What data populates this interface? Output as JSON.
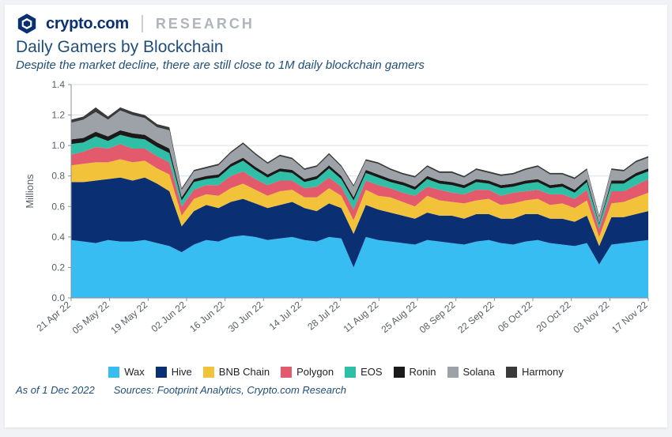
{
  "brand": {
    "name": "crypto.com",
    "research": "RESEARCH",
    "logo_primary": "#0a2f73",
    "logo_accent": "#ffffff",
    "research_color": "#b0b5bd"
  },
  "chart": {
    "type": "stacked-area",
    "title": "Daily Gamers by Blockchain",
    "subtitle": "Despite the market decline, there are still close to 1M daily blockchain gamers",
    "title_color": "#1f4e79",
    "title_fontsize": 21,
    "subtitle_fontsize": 15,
    "ylabel": "Millions",
    "ylabel_fontsize": 13,
    "ylim": [
      0.0,
      1.4
    ],
    "ytick_step": 0.2,
    "yticks": [
      "0.0",
      "0.2",
      "0.4",
      "0.6",
      "0.8",
      "1.0",
      "1.2",
      "1.4"
    ],
    "xticks": [
      "21 Apr 22",
      "05 May 22",
      "19 May 22",
      "02 Jun 22",
      "16 Jun 22",
      "30 Jun 22",
      "14 Jul 22",
      "28 Jul 22",
      "11 Aug 22",
      "25 Aug 22",
      "08 Sep 22",
      "22 Sep 22",
      "06 Oct 22",
      "20 Oct 22",
      "03 Nov 22",
      "17 Nov 22"
    ],
    "xtick_rotate_deg": -40,
    "grid_color": "#dcdfe4",
    "axis_color": "#8a8f98",
    "tick_font_color": "#5a5f66",
    "tick_fontsize": 12,
    "background_color": "#ffffff",
    "series": [
      {
        "name": "Wax",
        "color": "#37bdf2"
      },
      {
        "name": "Hive",
        "color": "#0a2f73"
      },
      {
        "name": "BNB Chain",
        "color": "#f2c23b"
      },
      {
        "name": "Polygon",
        "color": "#e35a6c"
      },
      {
        "name": "EOS",
        "color": "#2fbfa7"
      },
      {
        "name": "Ronin",
        "color": "#1a1a1a"
      },
      {
        "name": "Solana",
        "color": "#9da2a8"
      },
      {
        "name": "Harmony",
        "color": "#3a3a3a"
      }
    ],
    "data_points": [
      {
        "x": 0,
        "wax": 0.38,
        "hive": 0.38,
        "bnb": 0.11,
        "polygon": 0.07,
        "eos": 0.07,
        "ronin": 0.03,
        "solana": 0.11,
        "harmony": 0.02
      },
      {
        "x": 1,
        "wax": 0.37,
        "hive": 0.39,
        "bnb": 0.12,
        "polygon": 0.08,
        "eos": 0.06,
        "ronin": 0.03,
        "solana": 0.12,
        "harmony": 0.02
      },
      {
        "x": 2,
        "wax": 0.36,
        "hive": 0.41,
        "bnb": 0.12,
        "polygon": 0.1,
        "eos": 0.07,
        "ronin": 0.03,
        "solana": 0.13,
        "harmony": 0.03
      },
      {
        "x": 3,
        "wax": 0.38,
        "hive": 0.4,
        "bnb": 0.11,
        "polygon": 0.09,
        "eos": 0.05,
        "ronin": 0.03,
        "solana": 0.11,
        "harmony": 0.02
      },
      {
        "x": 4,
        "wax": 0.37,
        "hive": 0.42,
        "bnb": 0.12,
        "polygon": 0.1,
        "eos": 0.06,
        "ronin": 0.03,
        "solana": 0.13,
        "harmony": 0.02
      },
      {
        "x": 5,
        "wax": 0.37,
        "hive": 0.4,
        "bnb": 0.12,
        "polygon": 0.09,
        "eos": 0.07,
        "ronin": 0.03,
        "solana": 0.12,
        "harmony": 0.02
      },
      {
        "x": 6,
        "wax": 0.38,
        "hive": 0.41,
        "bnb": 0.11,
        "polygon": 0.08,
        "eos": 0.06,
        "ronin": 0.03,
        "solana": 0.11,
        "harmony": 0.02
      },
      {
        "x": 7,
        "wax": 0.36,
        "hive": 0.39,
        "bnb": 0.1,
        "polygon": 0.08,
        "eos": 0.06,
        "ronin": 0.03,
        "solana": 0.1,
        "harmony": 0.02
      },
      {
        "x": 8,
        "wax": 0.34,
        "hive": 0.36,
        "bnb": 0.11,
        "polygon": 0.08,
        "eos": 0.06,
        "ronin": 0.03,
        "solana": 0.12,
        "harmony": 0.02
      },
      {
        "x": 9,
        "wax": 0.3,
        "hive": 0.17,
        "bnb": 0.07,
        "polygon": 0.06,
        "eos": 0.04,
        "ronin": 0.02,
        "solana": 0.05,
        "harmony": 0.01
      },
      {
        "x": 10,
        "wax": 0.35,
        "hive": 0.22,
        "bnb": 0.08,
        "polygon": 0.06,
        "eos": 0.05,
        "ronin": 0.02,
        "solana": 0.05,
        "harmony": 0.01
      },
      {
        "x": 11,
        "wax": 0.38,
        "hive": 0.23,
        "bnb": 0.07,
        "polygon": 0.06,
        "eos": 0.04,
        "ronin": 0.02,
        "solana": 0.05,
        "harmony": 0.01
      },
      {
        "x": 12,
        "wax": 0.37,
        "hive": 0.22,
        "bnb": 0.08,
        "polygon": 0.07,
        "eos": 0.05,
        "ronin": 0.02,
        "solana": 0.06,
        "harmony": 0.01
      },
      {
        "x": 13,
        "wax": 0.4,
        "hive": 0.23,
        "bnb": 0.09,
        "polygon": 0.08,
        "eos": 0.06,
        "ronin": 0.02,
        "solana": 0.07,
        "harmony": 0.01
      },
      {
        "x": 14,
        "wax": 0.41,
        "hive": 0.24,
        "bnb": 0.1,
        "polygon": 0.08,
        "eos": 0.07,
        "ronin": 0.02,
        "solana": 0.09,
        "harmony": 0.01
      },
      {
        "x": 15,
        "wax": 0.4,
        "hive": 0.22,
        "bnb": 0.09,
        "polygon": 0.07,
        "eos": 0.06,
        "ronin": 0.02,
        "solana": 0.08,
        "harmony": 0.01
      },
      {
        "x": 16,
        "wax": 0.38,
        "hive": 0.21,
        "bnb": 0.08,
        "polygon": 0.07,
        "eos": 0.05,
        "ronin": 0.02,
        "solana": 0.07,
        "harmony": 0.01
      },
      {
        "x": 17,
        "wax": 0.39,
        "hive": 0.22,
        "bnb": 0.09,
        "polygon": 0.07,
        "eos": 0.06,
        "ronin": 0.02,
        "solana": 0.08,
        "harmony": 0.01
      },
      {
        "x": 18,
        "wax": 0.4,
        "hive": 0.23,
        "bnb": 0.08,
        "polygon": 0.06,
        "eos": 0.05,
        "ronin": 0.02,
        "solana": 0.07,
        "harmony": 0.01
      },
      {
        "x": 19,
        "wax": 0.38,
        "hive": 0.21,
        "bnb": 0.07,
        "polygon": 0.06,
        "eos": 0.04,
        "ronin": 0.02,
        "solana": 0.06,
        "harmony": 0.01
      },
      {
        "x": 20,
        "wax": 0.37,
        "hive": 0.2,
        "bnb": 0.09,
        "polygon": 0.07,
        "eos": 0.05,
        "ronin": 0.02,
        "solana": 0.06,
        "harmony": 0.01
      },
      {
        "x": 21,
        "wax": 0.4,
        "hive": 0.22,
        "bnb": 0.1,
        "polygon": 0.07,
        "eos": 0.06,
        "ronin": 0.02,
        "solana": 0.07,
        "harmony": 0.01
      },
      {
        "x": 22,
        "wax": 0.39,
        "hive": 0.2,
        "bnb": 0.08,
        "polygon": 0.06,
        "eos": 0.05,
        "ronin": 0.02,
        "solana": 0.06,
        "harmony": 0.01
      },
      {
        "x": 23,
        "wax": 0.2,
        "hive": 0.22,
        "bnb": 0.09,
        "polygon": 0.07,
        "eos": 0.06,
        "ronin": 0.02,
        "solana": 0.07,
        "harmony": 0.01
      },
      {
        "x": 24,
        "wax": 0.4,
        "hive": 0.21,
        "bnb": 0.1,
        "polygon": 0.06,
        "eos": 0.05,
        "ronin": 0.02,
        "solana": 0.06,
        "harmony": 0.01
      },
      {
        "x": 25,
        "wax": 0.38,
        "hive": 0.2,
        "bnb": 0.09,
        "polygon": 0.07,
        "eos": 0.05,
        "ronin": 0.02,
        "solana": 0.07,
        "harmony": 0.01
      },
      {
        "x": 26,
        "wax": 0.37,
        "hive": 0.19,
        "bnb": 0.1,
        "polygon": 0.06,
        "eos": 0.04,
        "ronin": 0.02,
        "solana": 0.06,
        "harmony": 0.01
      },
      {
        "x": 27,
        "wax": 0.36,
        "hive": 0.18,
        "bnb": 0.09,
        "polygon": 0.06,
        "eos": 0.05,
        "ronin": 0.02,
        "solana": 0.05,
        "harmony": 0.01
      },
      {
        "x": 28,
        "wax": 0.35,
        "hive": 0.17,
        "bnb": 0.08,
        "polygon": 0.07,
        "eos": 0.04,
        "ronin": 0.02,
        "solana": 0.06,
        "harmony": 0.01
      },
      {
        "x": 29,
        "wax": 0.38,
        "hive": 0.18,
        "bnb": 0.11,
        "polygon": 0.06,
        "eos": 0.05,
        "ronin": 0.02,
        "solana": 0.06,
        "harmony": 0.01
      },
      {
        "x": 30,
        "wax": 0.37,
        "hive": 0.17,
        "bnb": 0.1,
        "polygon": 0.07,
        "eos": 0.04,
        "ronin": 0.02,
        "solana": 0.05,
        "harmony": 0.01
      },
      {
        "x": 31,
        "wax": 0.36,
        "hive": 0.18,
        "bnb": 0.09,
        "polygon": 0.06,
        "eos": 0.05,
        "ronin": 0.02,
        "solana": 0.06,
        "harmony": 0.01
      },
      {
        "x": 32,
        "wax": 0.35,
        "hive": 0.17,
        "bnb": 0.1,
        "polygon": 0.06,
        "eos": 0.04,
        "ronin": 0.02,
        "solana": 0.05,
        "harmony": 0.01
      },
      {
        "x": 33,
        "wax": 0.37,
        "hive": 0.18,
        "bnb": 0.09,
        "polygon": 0.07,
        "eos": 0.05,
        "ronin": 0.02,
        "solana": 0.06,
        "harmony": 0.01
      },
      {
        "x": 34,
        "wax": 0.38,
        "hive": 0.17,
        "bnb": 0.1,
        "polygon": 0.06,
        "eos": 0.04,
        "ronin": 0.02,
        "solana": 0.05,
        "harmony": 0.01
      },
      {
        "x": 35,
        "wax": 0.36,
        "hive": 0.16,
        "bnb": 0.09,
        "polygon": 0.06,
        "eos": 0.05,
        "ronin": 0.02,
        "solana": 0.06,
        "harmony": 0.01
      },
      {
        "x": 36,
        "wax": 0.35,
        "hive": 0.17,
        "bnb": 0.1,
        "polygon": 0.07,
        "eos": 0.04,
        "ronin": 0.02,
        "solana": 0.06,
        "harmony": 0.01
      },
      {
        "x": 37,
        "wax": 0.37,
        "hive": 0.18,
        "bnb": 0.09,
        "polygon": 0.06,
        "eos": 0.05,
        "ronin": 0.02,
        "solana": 0.07,
        "harmony": 0.01
      },
      {
        "x": 38,
        "wax": 0.38,
        "hive": 0.17,
        "bnb": 0.1,
        "polygon": 0.06,
        "eos": 0.05,
        "ronin": 0.02,
        "solana": 0.08,
        "harmony": 0.01
      },
      {
        "x": 39,
        "wax": 0.36,
        "hive": 0.16,
        "bnb": 0.09,
        "polygon": 0.07,
        "eos": 0.04,
        "ronin": 0.02,
        "solana": 0.07,
        "harmony": 0.01
      },
      {
        "x": 40,
        "wax": 0.35,
        "hive": 0.17,
        "bnb": 0.1,
        "polygon": 0.06,
        "eos": 0.05,
        "ronin": 0.02,
        "solana": 0.06,
        "harmony": 0.01
      },
      {
        "x": 41,
        "wax": 0.34,
        "hive": 0.16,
        "bnb": 0.09,
        "polygon": 0.06,
        "eos": 0.04,
        "ronin": 0.02,
        "solana": 0.07,
        "harmony": 0.01
      },
      {
        "x": 42,
        "wax": 0.36,
        "hive": 0.18,
        "bnb": 0.1,
        "polygon": 0.07,
        "eos": 0.05,
        "ronin": 0.02,
        "solana": 0.06,
        "harmony": 0.01
      },
      {
        "x": 43,
        "wax": 0.22,
        "hive": 0.12,
        "bnb": 0.06,
        "polygon": 0.05,
        "eos": 0.03,
        "ronin": 0.01,
        "solana": 0.04,
        "harmony": 0.01
      },
      {
        "x": 44,
        "wax": 0.35,
        "hive": 0.18,
        "bnb": 0.09,
        "polygon": 0.08,
        "eos": 0.05,
        "ronin": 0.02,
        "solana": 0.07,
        "harmony": 0.01
      },
      {
        "x": 45,
        "wax": 0.36,
        "hive": 0.17,
        "bnb": 0.1,
        "polygon": 0.07,
        "eos": 0.05,
        "ronin": 0.02,
        "solana": 0.06,
        "harmony": 0.01
      },
      {
        "x": 46,
        "wax": 0.37,
        "hive": 0.18,
        "bnb": 0.11,
        "polygon": 0.08,
        "eos": 0.06,
        "ronin": 0.02,
        "solana": 0.07,
        "harmony": 0.01
      },
      {
        "x": 47,
        "wax": 0.38,
        "hive": 0.19,
        "bnb": 0.12,
        "polygon": 0.09,
        "eos": 0.05,
        "ronin": 0.02,
        "solana": 0.07,
        "harmony": 0.01
      }
    ]
  },
  "footer": {
    "asof": "As of 1 Dec 2022",
    "sources": "Sources: Footprint Analytics, Crypto.com Research"
  }
}
